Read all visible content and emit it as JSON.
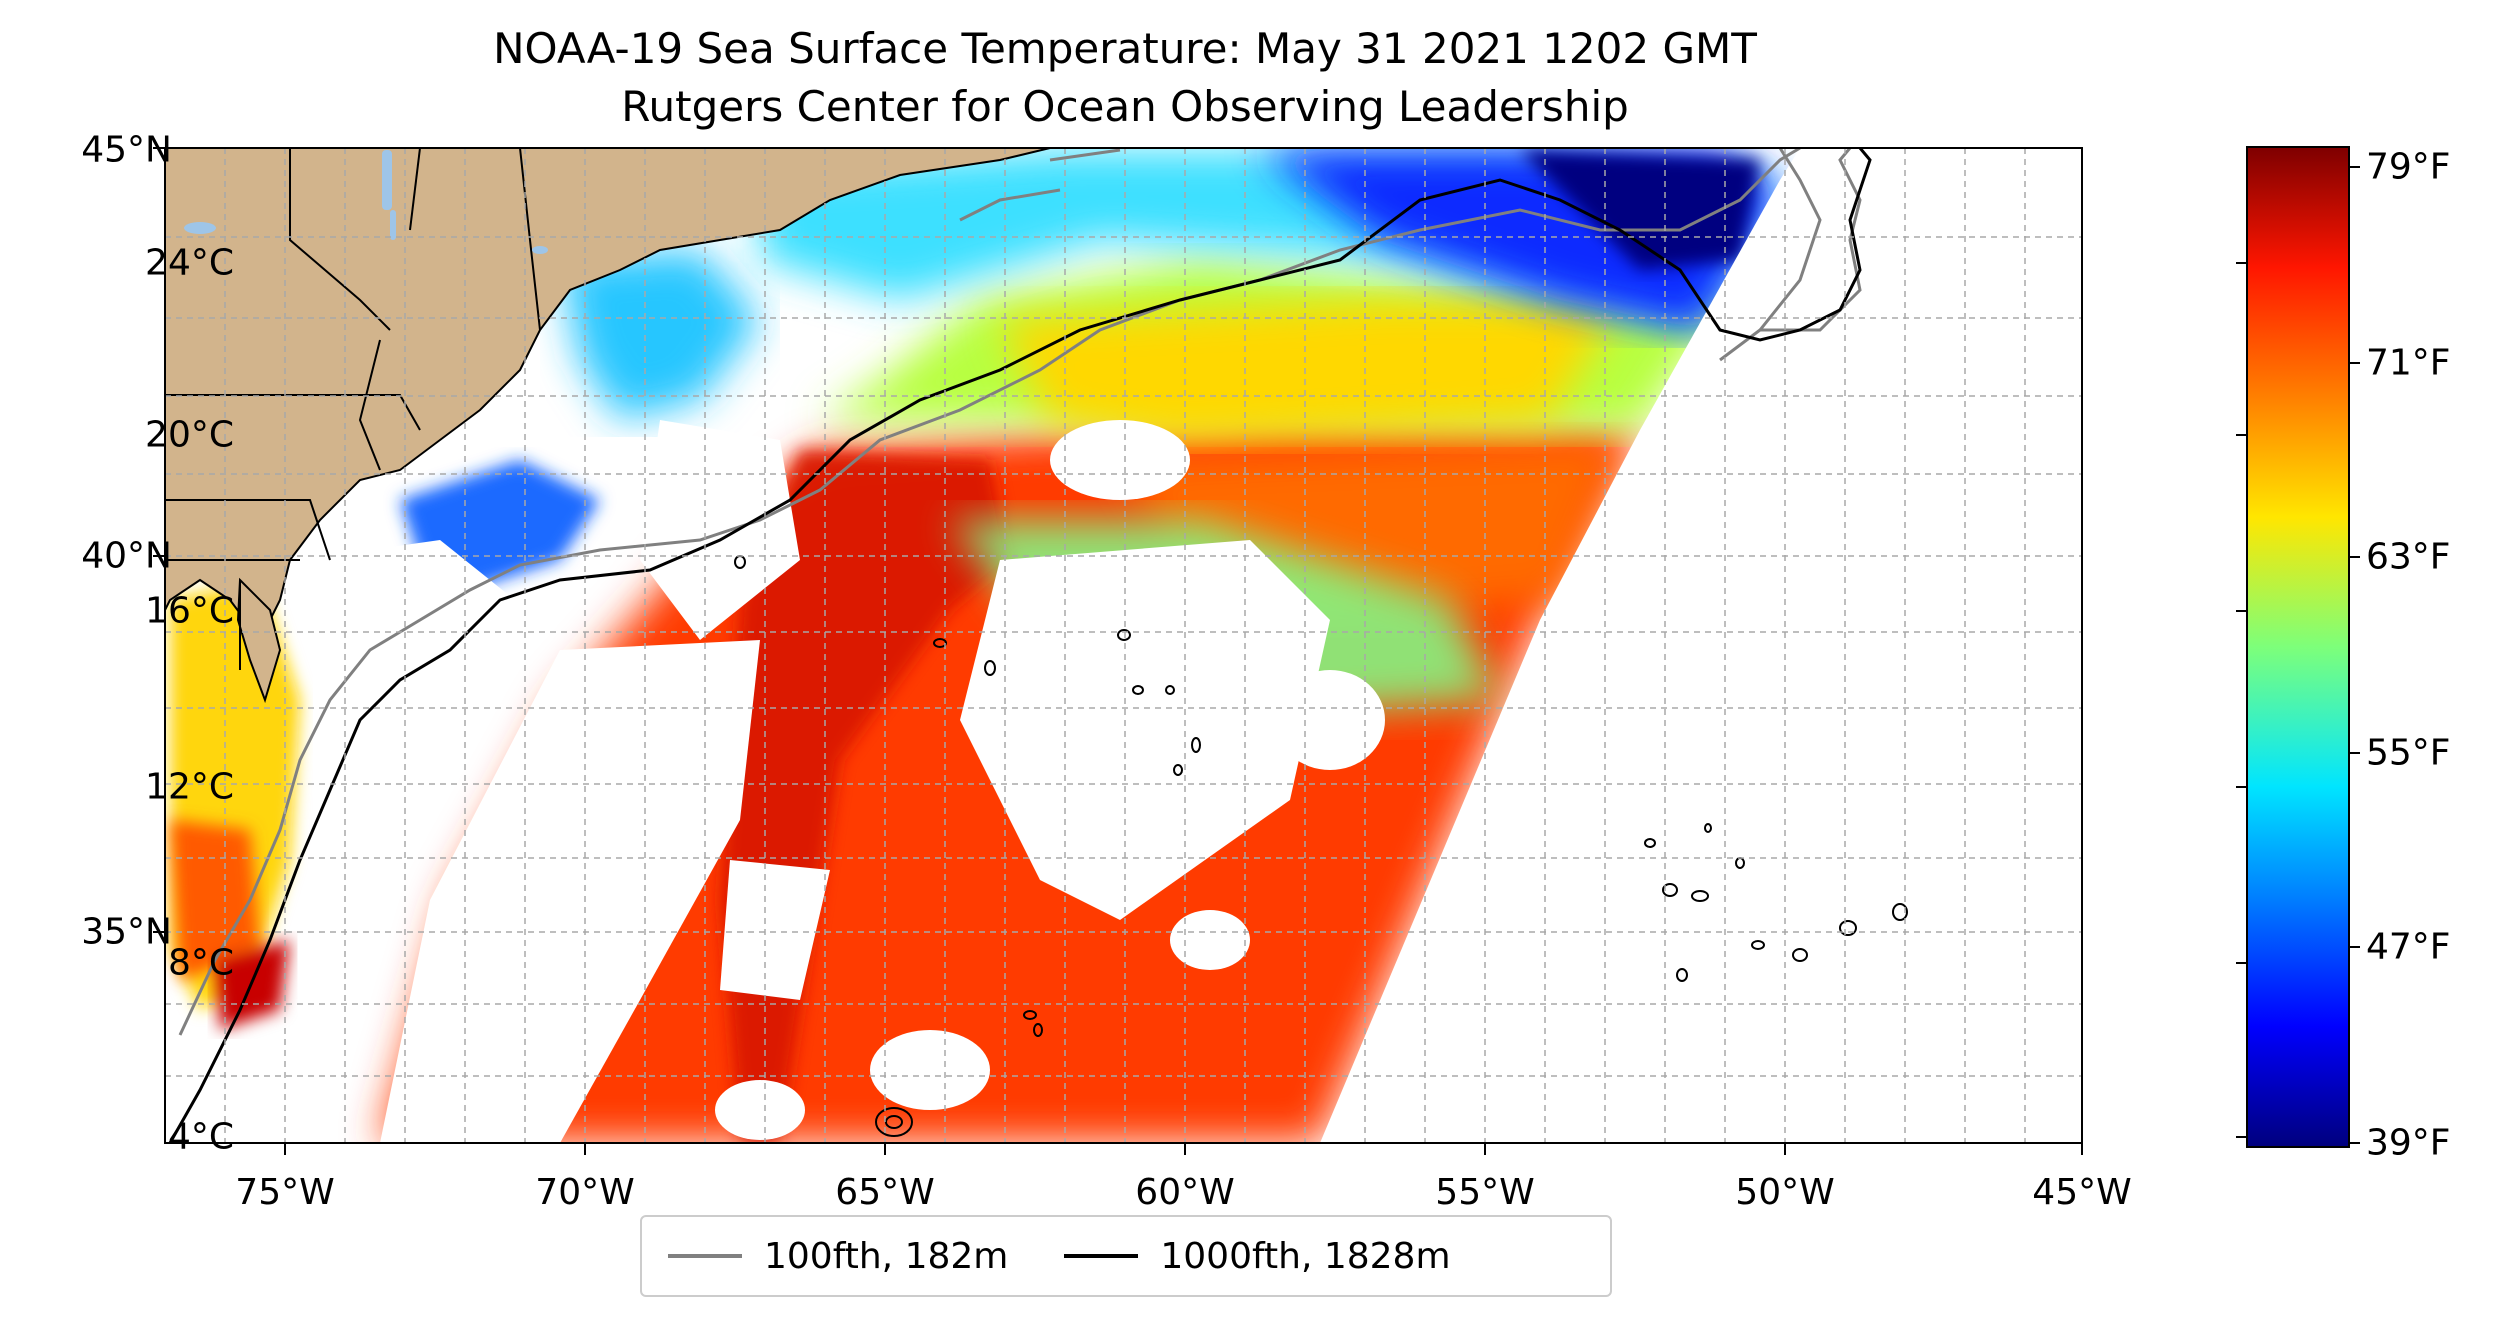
{
  "title_line1": "NOAA-19 Sea Surface Temperature: May 31 2021 1202 GMT",
  "title_line2": "Rutgers Center for Ocean Observing Leadership",
  "axes": {
    "lon_labels": [
      "75°W",
      "70°W",
      "65°W",
      "60°W",
      "55°W",
      "50°W",
      "45°W"
    ],
    "lat_labels": [
      "45°N",
      "40°N",
      "35°N"
    ],
    "extent": {
      "lon_min": -77,
      "lon_max": -45,
      "lat_min": 32.2,
      "lat_max": 45.0
    },
    "grid": true
  },
  "legend": {
    "items": [
      {
        "label": "100fth, 182m",
        "color": "#808080"
      },
      {
        "label": "1000fth, 1828m",
        "color": "#000000"
      }
    ]
  },
  "colorbar": {
    "colormap": "jet",
    "celsius_labels": [
      "24°C",
      "20°C",
      "16°C",
      "12°C",
      "8°C",
      "4°C"
    ],
    "fahrenheit_labels": [
      "79°F",
      "71°F",
      "63°F",
      "55°F",
      "47°F",
      "39°F"
    ],
    "range_c": [
      3.9,
      26.1
    ]
  },
  "colors": {
    "land": "#d2b48c",
    "lakes": "#9ec5e8",
    "no_data": "#ffffff",
    "coastline": "#000000"
  }
}
